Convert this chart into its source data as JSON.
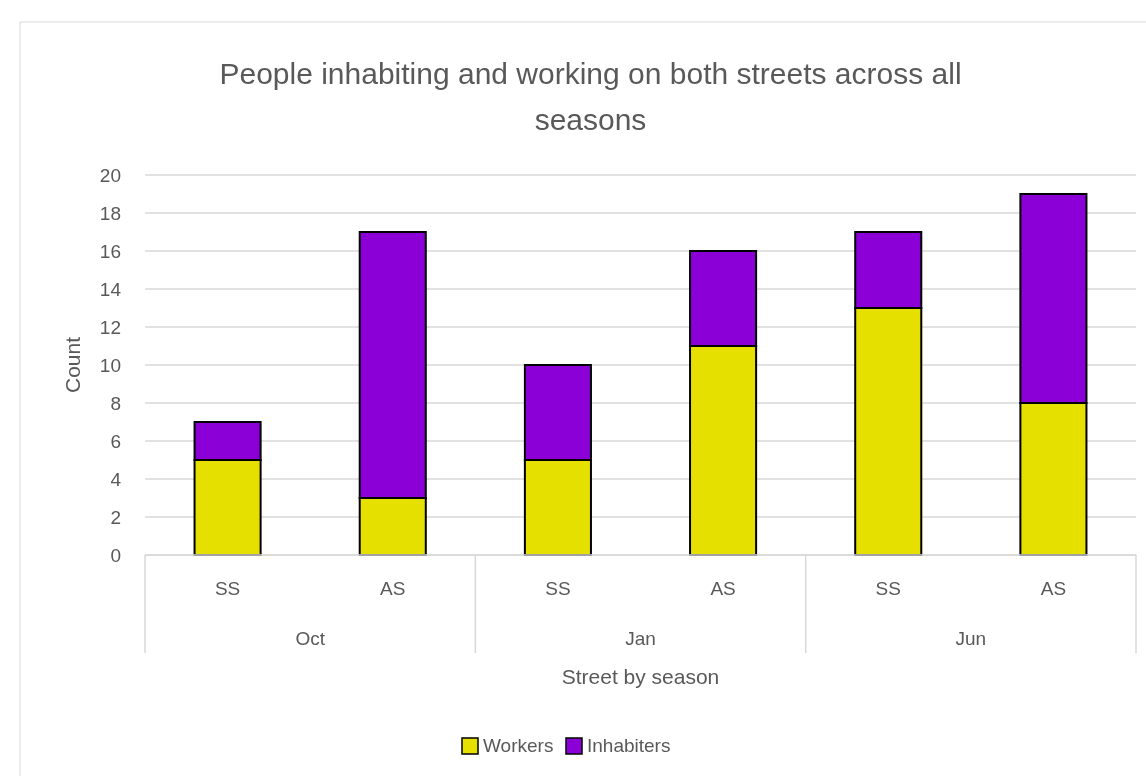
{
  "chart_data": {
    "type": "bar",
    "title": "People inhabiting and working on both streets across all seasons",
    "xlabel": "Street by season",
    "ylabel": "Count",
    "categories": [
      "SS",
      "AS",
      "SS",
      "AS",
      "SS",
      "AS"
    ],
    "annotations": [
      "Oct",
      "Jan",
      "Jun"
    ],
    "stacked": true,
    "series": [
      {
        "name": "Workers",
        "color": "#e6e000",
        "values": [
          5,
          3,
          5,
          11,
          13,
          8
        ]
      },
      {
        "name": "Inhabiters",
        "color": "#8b00d6",
        "values": [
          2,
          14,
          5,
          5,
          4,
          11
        ]
      }
    ],
    "ylim": [
      0,
      20
    ],
    "yticks": [
      0,
      2,
      4,
      6,
      8,
      10,
      12,
      14,
      16,
      18,
      20
    ],
    "grid": "y",
    "legend": "bottom"
  }
}
